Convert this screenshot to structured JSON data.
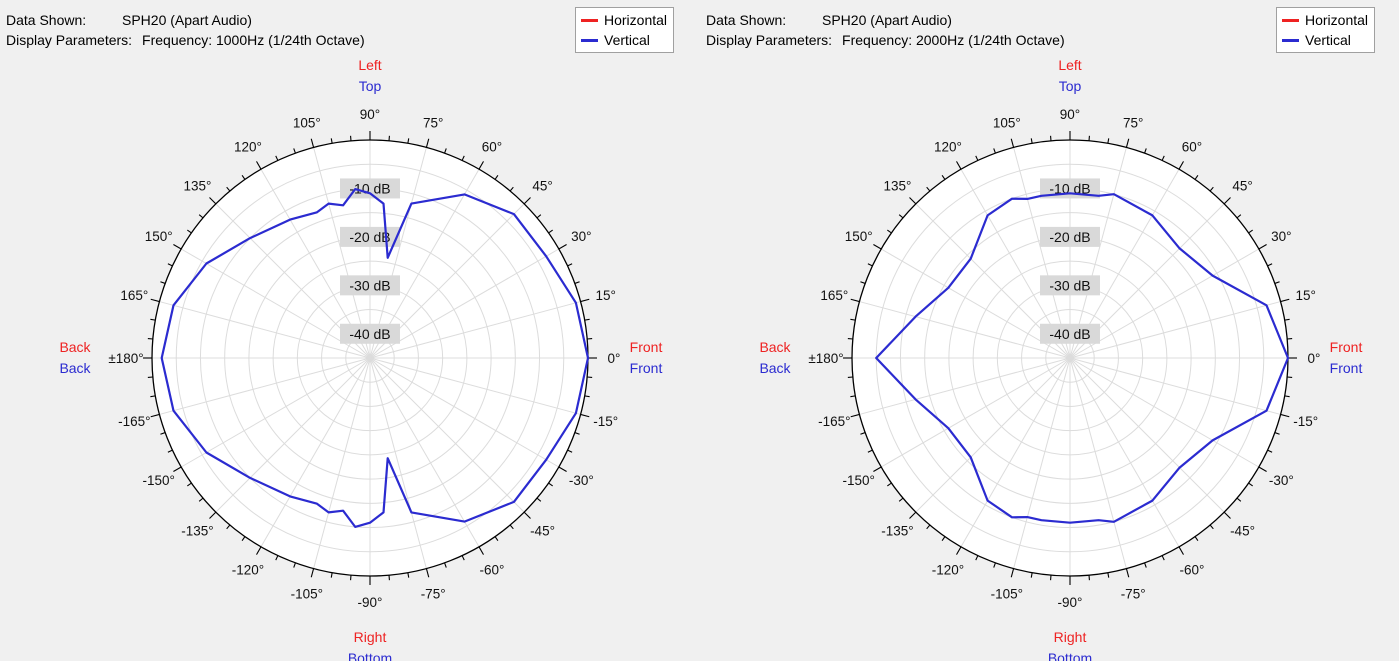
{
  "chart_data": [
    {
      "type": "polar-line",
      "data_shown_label": "Data Shown:",
      "data_shown_value": "SPH20 (Apart Audio)",
      "display_params_label": "Display Parameters:",
      "display_params_value": "Frequency: 1000Hz (1/24th Octave)",
      "legend": [
        {
          "name": "Horizontal",
          "color": "#ee2222"
        },
        {
          "name": "Vertical",
          "color": "#2b2bd0"
        }
      ],
      "radial_ticks": [
        "-10 dB",
        "-20 dB",
        "-30 dB",
        "-40 dB"
      ],
      "r_range_db": [
        -45,
        0
      ],
      "angle_labels": [
        "0°",
        "15°",
        "30°",
        "45°",
        "60°",
        "75°",
        "90°",
        "105°",
        "120°",
        "135°",
        "150°",
        "165°",
        "±180°",
        "-165°",
        "-150°",
        "-135°",
        "-120°",
        "-105°",
        "-90°",
        "-75°",
        "-60°",
        "-45°",
        "-30°",
        "-15°"
      ],
      "direction_labels": {
        "top": [
          {
            "text": "Left",
            "color": "#ee2222"
          },
          {
            "text": "Top",
            "color": "#2b2bd0"
          }
        ],
        "bottom": [
          {
            "text": "Right",
            "color": "#ee2222"
          },
          {
            "text": "Bottom",
            "color": "#2b2bd0"
          }
        ],
        "left": [
          {
            "text": "Back",
            "color": "#ee2222"
          },
          {
            "text": "Back",
            "color": "#2b2bd0"
          }
        ],
        "right": [
          {
            "text": "Front",
            "color": "#ee2222"
          },
          {
            "text": "Front",
            "color": "#2b2bd0"
          }
        ]
      },
      "series": [
        {
          "name": "Vertical",
          "color": "#2b2bd0",
          "angles_deg": [
            0,
            15,
            30,
            45,
            60,
            75,
            80,
            85,
            90,
            95,
            100,
            105,
            110,
            120,
            135,
            150,
            165,
            180,
            -165,
            -150,
            -135,
            -120,
            -110,
            -105,
            -100,
            -95,
            -90,
            -85,
            -80,
            -75,
            -60,
            -45,
            -30,
            -15
          ],
          "db": [
            0,
            -1,
            -3,
            -3,
            -6,
            -12,
            -24,
            -13,
            -11,
            -10,
            -13,
            -12,
            -13,
            -12,
            -10,
            -6,
            -3,
            -2,
            -3,
            -6,
            -10,
            -12,
            -13,
            -12,
            -13,
            -10,
            -11,
            -13,
            -24,
            -12,
            -6,
            -3,
            -3,
            -1
          ]
        }
      ]
    },
    {
      "type": "polar-line",
      "data_shown_label": "Data Shown:",
      "data_shown_value": "SPH20 (Apart Audio)",
      "display_params_label": "Display Parameters:",
      "display_params_value": "Frequency: 2000Hz (1/24th Octave)",
      "legend": [
        {
          "name": "Horizontal",
          "color": "#ee2222"
        },
        {
          "name": "Vertical",
          "color": "#2b2bd0"
        }
      ],
      "radial_ticks": [
        "-10 dB",
        "-20 dB",
        "-30 dB",
        "-40 dB"
      ],
      "r_range_db": [
        -45,
        0
      ],
      "angle_labels": [
        "0°",
        "15°",
        "30°",
        "45°",
        "60°",
        "75°",
        "90°",
        "105°",
        "120°",
        "135°",
        "150°",
        "165°",
        "±180°",
        "-165°",
        "-150°",
        "-135°",
        "-120°",
        "-105°",
        "-90°",
        "-75°",
        "-60°",
        "-45°",
        "-30°",
        "-15°"
      ],
      "direction_labels": {
        "top": [
          {
            "text": "Left",
            "color": "#ee2222"
          },
          {
            "text": "Top",
            "color": "#2b2bd0"
          }
        ],
        "bottom": [
          {
            "text": "Right",
            "color": "#ee2222"
          },
          {
            "text": "Bottom",
            "color": "#2b2bd0"
          }
        ],
        "left": [
          {
            "text": "Back",
            "color": "#ee2222"
          },
          {
            "text": "Back",
            "color": "#2b2bd0"
          }
        ],
        "right": [
          {
            "text": "Front",
            "color": "#ee2222"
          },
          {
            "text": "Front",
            "color": "#2b2bd0"
          }
        ]
      },
      "series": [
        {
          "name": "Vertical",
          "color": "#2b2bd0",
          "angles_deg": [
            0,
            15,
            30,
            45,
            60,
            75,
            80,
            90,
            100,
            105,
            110,
            120,
            135,
            150,
            165,
            180,
            -165,
            -150,
            -135,
            -120,
            -110,
            -105,
            -100,
            -90,
            -80,
            -75,
            -60,
            -45,
            -30,
            -15
          ],
          "db": [
            0,
            -3,
            -11,
            -13,
            -11,
            -10,
            -11,
            -11,
            -11,
            -11,
            -10,
            -11,
            -16,
            -16,
            -12,
            -5,
            -12,
            -16,
            -16,
            -11,
            -10,
            -11,
            -11,
            -11,
            -11,
            -10,
            -11,
            -13,
            -11,
            -3
          ]
        }
      ]
    }
  ]
}
